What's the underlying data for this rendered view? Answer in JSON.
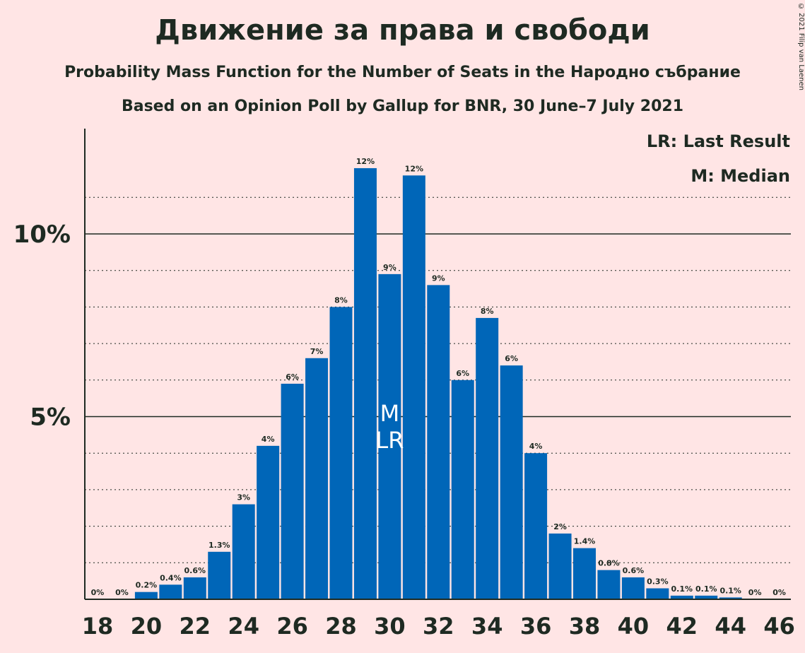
{
  "chart_data": {
    "type": "bar",
    "title": "Движение за права и свободи",
    "subtitle": "Probability Mass Function for the Number of Seats in the Народно събрание",
    "subtitle2": "Based on an Opinion Poll by Gallup for BNR, 30 June–7 July 2021",
    "copyright": "© 2021 Filip van Laenen",
    "legend": {
      "last_result": "LR: Last Result",
      "median": "M: Median",
      "placement": "top-right"
    },
    "x": [
      18,
      19,
      20,
      21,
      22,
      23,
      24,
      25,
      26,
      27,
      28,
      29,
      30,
      31,
      32,
      33,
      34,
      35,
      36,
      37,
      38,
      39,
      40,
      41,
      42,
      43,
      44,
      45,
      46
    ],
    "values": [
      0,
      0,
      0.2,
      0.4,
      0.6,
      1.3,
      2.6,
      4.2,
      5.9,
      6.6,
      8.0,
      11.8,
      8.9,
      11.6,
      8.6,
      6.0,
      7.7,
      6.4,
      4.0,
      1.8,
      1.4,
      0.8,
      0.6,
      0.3,
      0.1,
      0.1,
      0.05,
      0,
      0
    ],
    "labels": [
      "0%",
      "0%",
      "0.2%",
      "0.4%",
      "0.6%",
      "1.3%",
      "3%",
      "4%",
      "6%",
      "7%",
      "8%",
      "12%",
      "9%",
      "12%",
      "9%",
      "6%",
      "8%",
      "6%",
      "4%",
      "2%",
      "1.4%",
      "0.8%",
      "0.6%",
      "0.3%",
      "0.1%",
      "0.1%",
      "0.1%",
      "0%",
      "0%"
    ],
    "x_tick_labels": [
      "18",
      "20",
      "22",
      "24",
      "26",
      "28",
      "30",
      "32",
      "34",
      "36",
      "38",
      "40",
      "42",
      "44",
      "46"
    ],
    "y_tick_labels": [
      {
        "value": 5,
        "label": "5%"
      },
      {
        "value": 10,
        "label": "10%"
      }
    ],
    "ylim": [
      0,
      12.9
    ],
    "median": 30,
    "last_result": 30,
    "median_mark": "M",
    "last_result_mark": "LR",
    "colors": {
      "bar": "#0066B8",
      "background": "#FFE5E5",
      "text": "#1e2a22"
    }
  }
}
